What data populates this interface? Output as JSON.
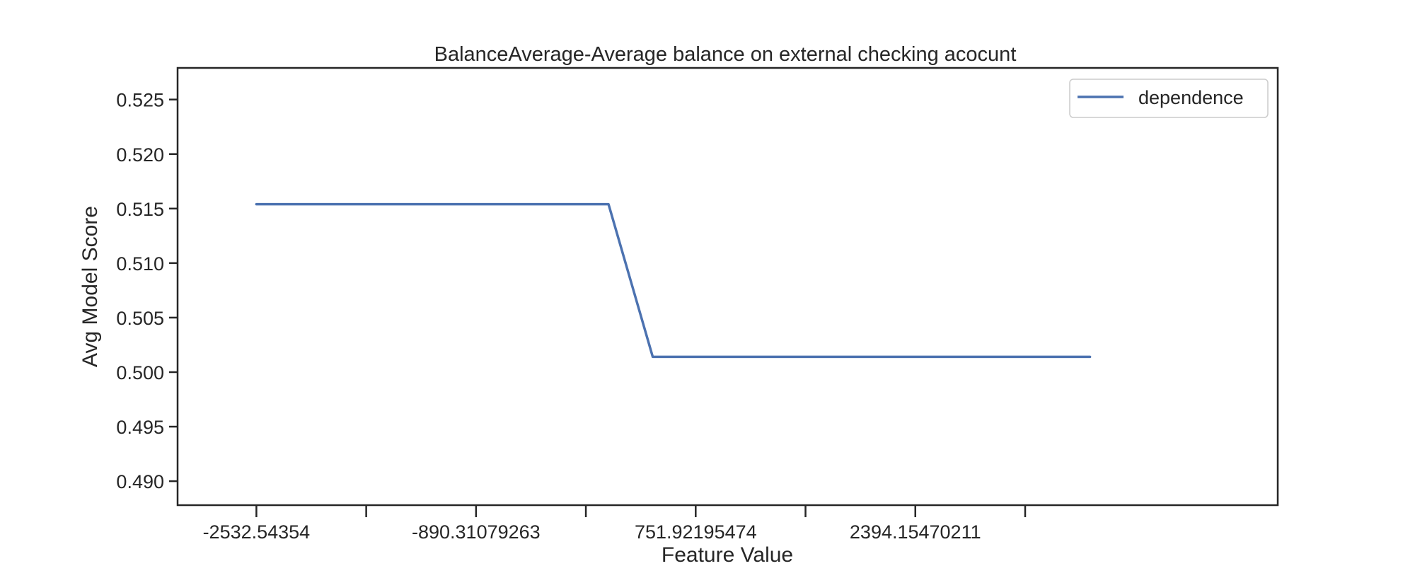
{
  "chart_data": {
    "type": "line",
    "title": "BalanceAverage-Average balance on external checking acocunt",
    "xlabel": "Feature Value",
    "ylabel": "Avg Model Score",
    "xlim": [
      -3121.8,
      5103.8
    ],
    "ylim": [
      0.4878,
      0.5279
    ],
    "xticks": [
      -2532.54354,
      -1711.42716,
      -890.31079263,
      -69.19442,
      751.92195474,
      1573.03832,
      2394.15470211,
      3215.27108
    ],
    "xtick_labels": [
      "-2532.54354",
      "",
      "-890.31079263",
      "",
      "751.92195474",
      "",
      "2394.15470211",
      ""
    ],
    "yticks": [
      0.49,
      0.495,
      0.5,
      0.505,
      0.51,
      0.515,
      0.52,
      0.525
    ],
    "ytick_labels": [
      "0.490",
      "0.495",
      "0.500",
      "0.505",
      "0.510",
      "0.515",
      "0.520",
      "0.525"
    ],
    "grid": false,
    "legend_position": "top-right",
    "series": [
      {
        "name": "dependence",
        "color": "#4c72b0",
        "x": [
          -2532.54354,
          100.0,
          431.0,
          3700.0
        ],
        "y": [
          0.5154,
          0.5154,
          0.5014,
          0.5014
        ]
      }
    ]
  }
}
